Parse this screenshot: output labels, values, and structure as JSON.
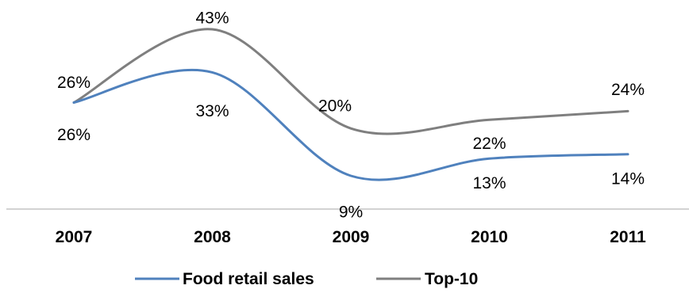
{
  "chart_data": {
    "type": "line",
    "smooth": true,
    "categories": [
      "2007",
      "2008",
      "2009",
      "2010",
      "2011"
    ],
    "series": [
      {
        "name": "Food retail sales",
        "values": [
          26,
          33,
          9,
          13,
          14
        ],
        "labels": [
          "26%",
          "33%",
          "9%",
          "13%",
          "14%"
        ],
        "color": "#4F81BD"
      },
      {
        "name": "Top-10",
        "values": [
          26,
          43,
          20,
          22,
          24
        ],
        "labels": [
          "26%",
          "43%",
          "20%",
          "22%",
          "24%"
        ],
        "color": "#7F7F7F"
      }
    ],
    "title": "",
    "xlabel": "",
    "ylabel": "",
    "y_axis_visible": false,
    "grid": false,
    "legend_position": "bottom"
  }
}
